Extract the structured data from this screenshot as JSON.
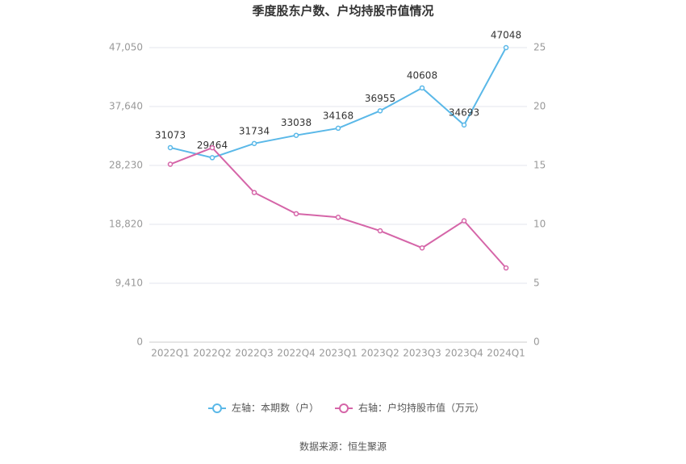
{
  "chart_data": {
    "type": "line",
    "title": "季度股东户数、户均持股市值情况",
    "categories": [
      "2022Q1",
      "2022Q2",
      "2022Q3",
      "2022Q4",
      "2023Q1",
      "2023Q2",
      "2023Q3",
      "2023Q4",
      "2024Q1"
    ],
    "series": [
      {
        "name": "左轴：本期数（户）",
        "color": "#5ab8e8",
        "values": [
          31073,
          29464,
          31734,
          33038,
          34168,
          36955,
          40608,
          34693,
          47048
        ],
        "show_labels": true
      },
      {
        "name": "右轴：户均持股市值（万元）",
        "color": "#d565a8",
        "axis": "y2",
        "values": [
          15.1,
          16.5,
          12.7,
          10.9,
          10.6,
          9.45,
          8.0,
          10.3,
          6.3
        ]
      }
    ],
    "ylim": [
      0,
      47050
    ],
    "yticks": [
      0,
      {
        "value": 9410,
        "label": "9,410"
      },
      {
        "value": 18820,
        "label": "18,820"
      },
      {
        "value": 28230,
        "label": "28,230"
      },
      {
        "value": 37640,
        "label": "37,640"
      },
      {
        "value": 47050,
        "label": "47,050"
      }
    ],
    "y2lim": [
      0,
      25
    ],
    "y2ticks": [
      0,
      5,
      10,
      15,
      20,
      25
    ],
    "grid": true,
    "legend": "bottom",
    "source": "数据来源：恒生聚源"
  }
}
